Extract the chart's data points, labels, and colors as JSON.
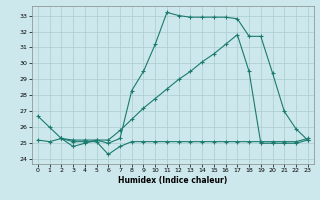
{
  "xlabel": "Humidex (Indice chaleur)",
  "background_color": "#cde8ec",
  "line_color": "#1a7a6e",
  "grid_color": "#aacccc",
  "xlim": [
    -0.5,
    23.5
  ],
  "ylim": [
    23.7,
    33.6
  ],
  "yticks": [
    24,
    25,
    26,
    27,
    28,
    29,
    30,
    31,
    32,
    33
  ],
  "xticks": [
    0,
    1,
    2,
    3,
    4,
    5,
    6,
    7,
    8,
    9,
    10,
    11,
    12,
    13,
    14,
    15,
    16,
    17,
    18,
    19,
    20,
    21,
    22,
    23
  ],
  "line1_x": [
    0,
    1,
    2,
    3,
    4,
    5,
    6,
    7,
    8,
    9,
    10,
    11,
    12,
    13,
    14,
    15,
    16,
    17,
    18,
    19,
    20,
    21,
    22,
    23
  ],
  "line1_y": [
    26.7,
    26.0,
    25.3,
    24.8,
    25.0,
    25.2,
    25.0,
    25.3,
    28.3,
    29.5,
    31.2,
    33.2,
    33.0,
    32.9,
    32.9,
    32.9,
    32.9,
    32.8,
    31.7,
    31.7,
    29.4,
    27.0,
    25.9,
    25.2
  ],
  "line2_x": [
    0,
    1,
    2,
    3,
    4,
    5,
    6,
    7,
    8,
    9,
    10,
    11,
    12,
    13,
    14,
    15,
    16,
    17,
    18,
    19,
    20,
    21,
    22,
    23
  ],
  "line2_y": [
    25.2,
    25.1,
    25.3,
    25.2,
    25.2,
    25.2,
    25.2,
    25.8,
    26.5,
    27.2,
    27.8,
    28.4,
    29.0,
    29.5,
    30.1,
    30.6,
    31.2,
    31.8,
    29.5,
    25.0,
    25.0,
    25.0,
    25.0,
    25.2
  ],
  "line3_x": [
    2,
    3,
    4,
    5,
    6,
    7,
    8,
    9,
    10,
    11,
    12,
    13,
    14,
    15,
    16,
    17,
    18,
    19,
    20,
    21,
    22,
    23
  ],
  "line3_y": [
    25.3,
    25.1,
    25.1,
    25.1,
    24.3,
    24.8,
    25.1,
    25.1,
    25.1,
    25.1,
    25.1,
    25.1,
    25.1,
    25.1,
    25.1,
    25.1,
    25.1,
    25.1,
    25.1,
    25.1,
    25.1,
    25.3
  ]
}
